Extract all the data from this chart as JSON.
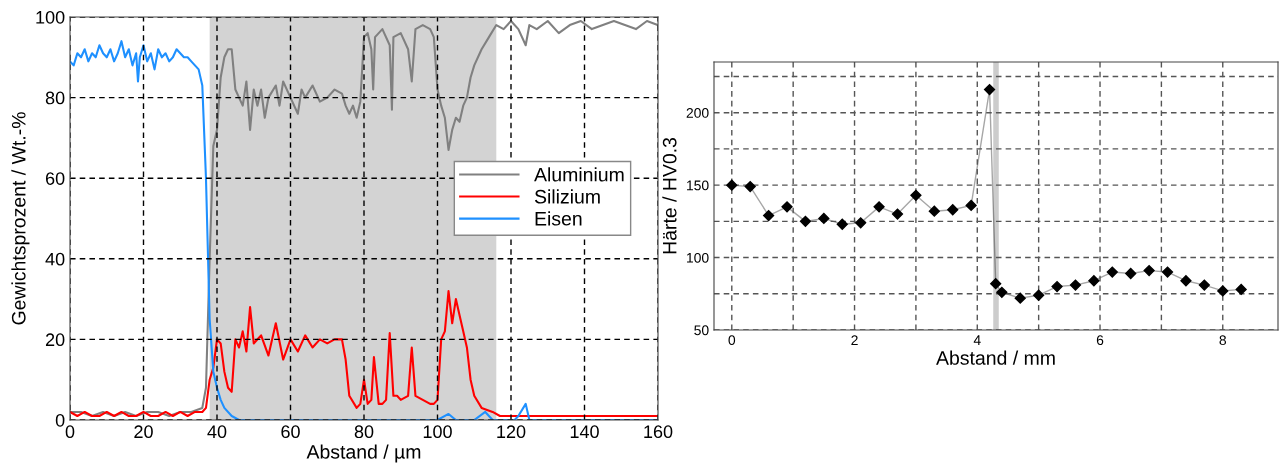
{
  "chart_data": [
    {
      "type": "line",
      "xlabel": "Abstand / µm",
      "ylabel": "Gewichtsprozent / Wt.-%",
      "xlim": [
        0,
        160
      ],
      "ylim": [
        0,
        100
      ],
      "xticks": [
        0,
        20,
        40,
        60,
        80,
        100,
        120,
        140,
        160
      ],
      "yticks": [
        0,
        20,
        40,
        60,
        80,
        100
      ],
      "grid": true,
      "legend": "right",
      "line_style": "solid",
      "marker": "none",
      "bands": [
        {
          "axis": "x",
          "from": 38,
          "to": 116,
          "color": "#d3d3d3"
        }
      ],
      "series": [
        {
          "name": "Aluminium",
          "color": "#808080",
          "x": [
            0,
            3,
            6,
            9,
            12,
            15,
            18,
            21,
            24,
            27,
            30,
            33,
            36,
            37,
            38,
            39,
            40,
            41,
            42,
            43,
            44,
            45,
            46,
            47,
            48,
            49,
            50,
            51,
            52,
            53,
            54,
            56,
            57,
            58,
            60,
            62,
            63,
            64,
            66,
            68,
            70,
            72,
            74,
            75,
            76,
            77,
            78,
            79,
            80,
            81,
            82,
            82.5,
            83,
            85,
            87,
            87.6,
            88,
            90,
            92,
            93,
            94,
            96,
            98,
            99,
            100,
            101,
            102,
            103,
            104,
            105,
            106,
            107,
            108,
            109,
            110,
            112,
            114,
            116,
            118,
            120,
            122,
            124,
            125,
            127,
            130,
            133,
            136,
            139,
            142,
            145,
            148,
            151,
            154,
            157,
            160
          ],
          "values": [
            2,
            2,
            1,
            2,
            1,
            2,
            1,
            2,
            2,
            1,
            2,
            2,
            3,
            8,
            40,
            68,
            72,
            85,
            90,
            92,
            92,
            82,
            80,
            78,
            84,
            72,
            82,
            78,
            82,
            75,
            80,
            83,
            78,
            84,
            80,
            76,
            82,
            80,
            83,
            79,
            80,
            82,
            81,
            78,
            76,
            78,
            75,
            79,
            95,
            96,
            92,
            82,
            95,
            97,
            93,
            77,
            95,
            96,
            92,
            84,
            97,
            98,
            97,
            95,
            82,
            78,
            75,
            67,
            72,
            75,
            74,
            78,
            80,
            85,
            88,
            92,
            95,
            98,
            97,
            99,
            97,
            93,
            98,
            97,
            99,
            96,
            98,
            99,
            97,
            98,
            99,
            98,
            97,
            99,
            98
          ]
        },
        {
          "name": "Silizium",
          "color": "#ff0000",
          "x": [
            0,
            2,
            4,
            6,
            8,
            10,
            12,
            14,
            16,
            18,
            20,
            22,
            24,
            26,
            28,
            30,
            32,
            34,
            36,
            37,
            38,
            39,
            40,
            41,
            42,
            43,
            44,
            45,
            46,
            47,
            48,
            49,
            50,
            52,
            54,
            56,
            58,
            60,
            62,
            64,
            66,
            68,
            70,
            72,
            74,
            75,
            76,
            78,
            79,
            80,
            81,
            82,
            82.7,
            84,
            85,
            86,
            87,
            88,
            89,
            90,
            92,
            93,
            94,
            96,
            98,
            99,
            100,
            101,
            102,
            103,
            104,
            105,
            106,
            107,
            108,
            109,
            110,
            112,
            115,
            117,
            120,
            125,
            130,
            135,
            140,
            145,
            150,
            155,
            160
          ],
          "values": [
            2,
            1,
            2,
            1,
            1,
            2,
            1,
            2,
            1,
            1,
            2,
            1,
            1,
            2,
            1,
            2,
            1,
            2,
            2,
            3,
            10,
            13,
            20,
            19,
            12,
            8,
            7,
            20,
            18,
            22,
            17,
            28,
            19,
            21,
            16,
            24,
            15,
            20,
            17,
            21,
            18,
            20,
            19,
            20,
            20,
            15,
            6,
            3,
            4,
            10,
            4,
            5,
            15.6,
            4,
            4,
            5,
            21.6,
            6,
            6,
            5,
            6,
            18,
            6,
            5,
            4,
            4,
            5,
            20,
            22,
            32,
            24,
            30,
            26,
            22,
            18,
            10,
            6,
            3,
            2,
            1,
            1,
            1,
            1,
            1,
            1,
            1,
            1,
            1,
            1
          ]
        },
        {
          "name": "Eisen",
          "color": "#1e90ff",
          "x": [
            0,
            1,
            2,
            3,
            4,
            5,
            6,
            7,
            8,
            9,
            10,
            11,
            12,
            13,
            14,
            15,
            16,
            17,
            18,
            18.5,
            19,
            20,
            21,
            22,
            23,
            24,
            25,
            26,
            27,
            28,
            29,
            30,
            31,
            32,
            33,
            34,
            35,
            36,
            37,
            38,
            39,
            40,
            41,
            42,
            44,
            46,
            60,
            80,
            100,
            103,
            105,
            110,
            113,
            115,
            121,
            122,
            124,
            125,
            140,
            160
          ],
          "values": [
            89,
            88,
            91,
            90,
            92,
            89,
            91,
            90,
            93,
            91,
            90,
            92,
            89,
            91,
            94,
            90,
            92,
            88,
            91,
            84,
            90,
            93,
            89,
            91,
            87,
            92,
            90,
            91,
            89,
            90,
            92,
            91,
            90,
            90,
            89,
            88,
            87,
            83,
            60,
            25,
            12,
            8,
            5,
            3,
            1,
            0,
            0,
            0,
            0,
            1.5,
            0,
            0,
            2,
            0,
            0,
            1,
            4,
            0,
            0,
            0
          ]
        }
      ]
    },
    {
      "type": "line",
      "xlabel": "Abstand / mm",
      "ylabel": "Härte / HV0.3",
      "xlim": [
        -0.29,
        8.9
      ],
      "ylim": [
        50,
        235
      ],
      "xticks": [
        0,
        {
          "value": 1,
          "label": null
        },
        2,
        {
          "value": 3,
          "label": null
        },
        4,
        {
          "value": 5,
          "label": null
        },
        6,
        {
          "value": 7,
          "label": null
        },
        8
      ],
      "yticks": [
        50,
        {
          "value": 75,
          "label": null
        },
        100,
        {
          "value": 125,
          "label": null
        },
        150,
        {
          "value": 175,
          "label": null
        },
        200,
        {
          "value": 225,
          "label": null
        }
      ],
      "grid": true,
      "marker": "diamond",
      "line_style": "solid",
      "bands": [
        {
          "axis": "x",
          "from": 4.26,
          "to": 4.35,
          "color": "#cccccc"
        }
      ],
      "series": [
        {
          "color": "#000000",
          "x": [
            0,
            0.3,
            0.6,
            0.9,
            1.2,
            1.5,
            1.8,
            2.1,
            2.4,
            2.7,
            3.0,
            3.3,
            3.6,
            3.9,
            4.2,
            4.3,
            4.4,
            4.7,
            5.0,
            5.3,
            5.6,
            5.9,
            6.2,
            6.5,
            6.8,
            7.1,
            7.4,
            7.7,
            8.0,
            8.3
          ],
          "values": [
            150,
            149,
            129,
            135,
            125,
            127,
            123,
            124,
            135,
            130,
            143,
            132,
            133,
            136,
            216,
            82,
            76,
            72,
            74,
            80,
            81,
            84,
            90,
            89,
            91,
            90,
            84,
            81,
            77,
            78
          ]
        }
      ]
    }
  ]
}
